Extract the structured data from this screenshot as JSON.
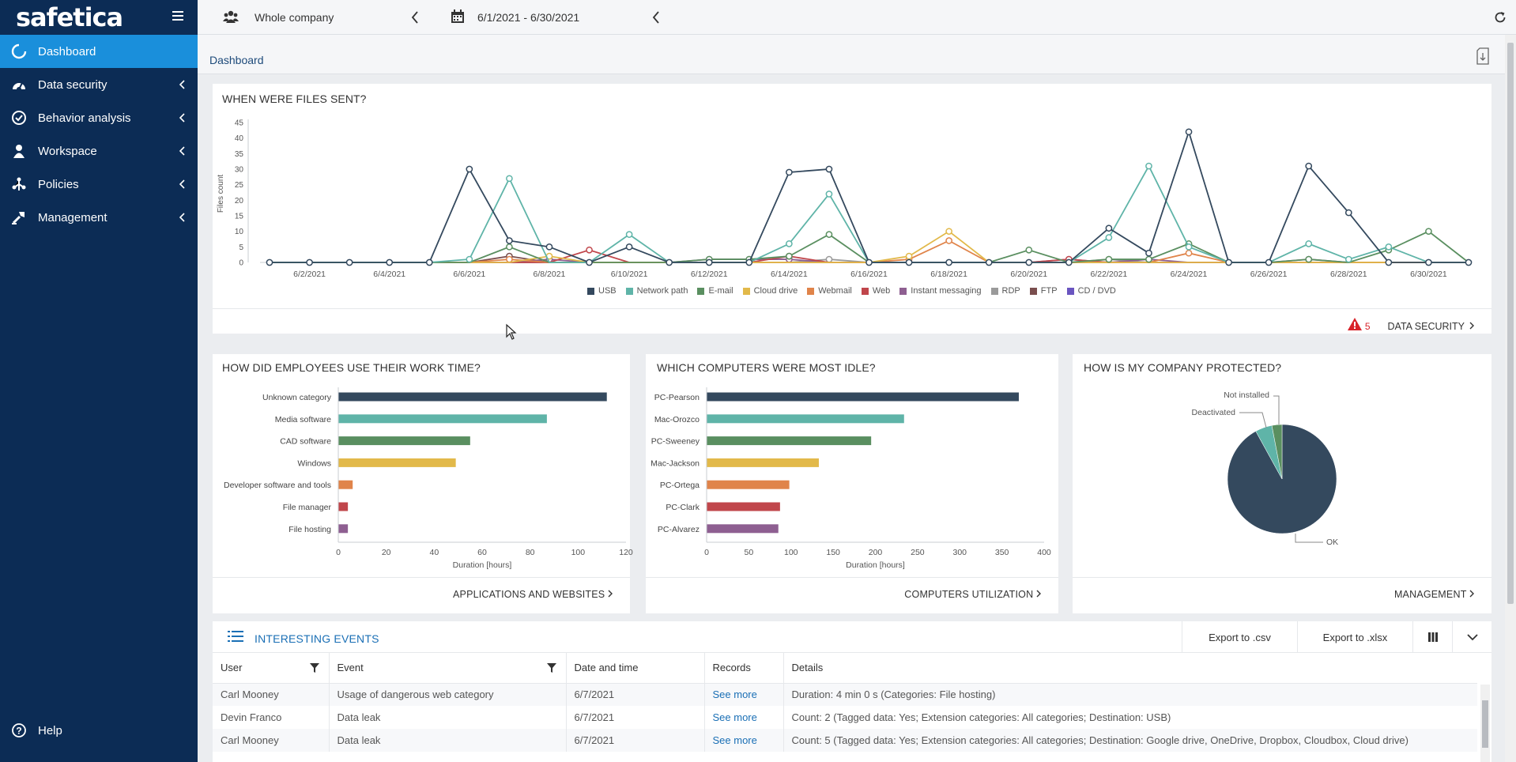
{
  "brand": {
    "logo": "safetica"
  },
  "sidebar": {
    "items": [
      {
        "label": "Dashboard",
        "active": true,
        "icon": "dashboard-icon"
      },
      {
        "label": "Data security",
        "icon": "data-security-icon"
      },
      {
        "label": "Behavior analysis",
        "icon": "behavior-icon"
      },
      {
        "label": "Workspace",
        "icon": "workspace-icon"
      },
      {
        "label": "Policies",
        "icon": "policies-icon"
      },
      {
        "label": "Management",
        "icon": "management-icon"
      }
    ],
    "help": "Help"
  },
  "topbar": {
    "scope": "Whole company",
    "date_range": "6/1/2021 - 6/30/2021"
  },
  "page": {
    "breadcrumb": "Dashboard"
  },
  "colors": {
    "navy": "#0c2c55",
    "accent": "#1a8fdb",
    "usb": "#34495e",
    "network": "#5fb4a8",
    "email": "#5a8f60",
    "cloud": "#e2b94a",
    "webmail": "#e0844a",
    "web": "#c0464b",
    "im": "#8e5f91",
    "rdp": "#9a9a9a",
    "ftp": "#7a4e4e",
    "cd": "#6a55c0"
  },
  "files_sent": {
    "title": "WHEN WERE FILES SENT?",
    "link": "DATA SECURITY",
    "alert_count": "5"
  },
  "work_time": {
    "title": "HOW DID EMPLOYEES USE THEIR WORK TIME?",
    "link": "APPLICATIONS AND WEBSITES"
  },
  "idle": {
    "title": "WHICH COMPUTERS WERE MOST IDLE?",
    "link": "COMPUTERS UTILIZATION"
  },
  "protected": {
    "title": "HOW IS MY COMPANY PROTECTED?",
    "link": "MANAGEMENT"
  },
  "chart_data": [
    {
      "type": "line",
      "ylabel": "Files count",
      "ylim": [
        0,
        45
      ],
      "yticks": [
        0,
        5,
        10,
        15,
        20,
        25,
        30,
        35,
        40,
        45
      ],
      "x": [
        "6/1/2021",
        "6/2/2021",
        "6/3/2021",
        "6/4/2021",
        "6/5/2021",
        "6/6/2021",
        "6/7/2021",
        "6/8/2021",
        "6/9/2021",
        "6/10/2021",
        "6/11/2021",
        "6/12/2021",
        "6/13/2021",
        "6/14/2021",
        "6/15/2021",
        "6/16/2021",
        "6/17/2021",
        "6/18/2021",
        "6/19/2021",
        "6/20/2021",
        "6/21/2021",
        "6/22/2021",
        "6/23/2021",
        "6/24/2021",
        "6/25/2021",
        "6/26/2021",
        "6/27/2021",
        "6/28/2021",
        "6/29/2021",
        "6/30/2021",
        "7/1/2021"
      ],
      "xtick_labels": [
        "6/2/2021",
        "6/4/2021",
        "6/6/2021",
        "6/8/2021",
        "6/10/2021",
        "6/12/2021",
        "6/14/2021",
        "6/16/2021",
        "6/18/2021",
        "6/20/2021",
        "6/22/2021",
        "6/24/2021",
        "6/26/2021",
        "6/28/2021",
        "6/30/2021"
      ],
      "grid": false,
      "legend": "bottom",
      "series": [
        {
          "name": "USB",
          "color": "#34495e",
          "values": [
            0,
            0,
            0,
            0,
            0,
            30,
            7,
            5,
            0,
            5,
            0,
            0,
            0,
            29,
            30,
            0,
            0,
            0,
            0,
            0,
            0,
            11,
            3,
            42,
            0,
            0,
            31,
            16,
            0,
            0,
            0
          ]
        },
        {
          "name": "Network path",
          "color": "#5fb4a8",
          "values": [
            0,
            0,
            0,
            0,
            0,
            1,
            27,
            0,
            0,
            9,
            0,
            0,
            0,
            6,
            22,
            0,
            0,
            0,
            0,
            0,
            0,
            8,
            31,
            5,
            0,
            0,
            6,
            1,
            5,
            0,
            0
          ]
        },
        {
          "name": "E-mail",
          "color": "#5a8f60",
          "values": [
            0,
            0,
            0,
            0,
            0,
            0,
            5,
            0,
            0,
            0,
            0,
            1,
            1,
            2,
            9,
            0,
            0,
            0,
            0,
            4,
            0,
            1,
            1,
            6,
            0,
            0,
            1,
            0,
            4,
            10,
            0
          ]
        },
        {
          "name": "Cloud drive",
          "color": "#e2b94a",
          "values": [
            0,
            0,
            0,
            0,
            0,
            0,
            0,
            2,
            0,
            0,
            0,
            0,
            0,
            0,
            0,
            0,
            2,
            10,
            0,
            0,
            0,
            0,
            0,
            0,
            0,
            0,
            0,
            0,
            0,
            0,
            0
          ]
        },
        {
          "name": "Webmail",
          "color": "#e0844a",
          "values": [
            0,
            0,
            0,
            0,
            0,
            0,
            1,
            0,
            0,
            0,
            0,
            0,
            0,
            0,
            0,
            0,
            1,
            7,
            0,
            0,
            0,
            0,
            0,
            3,
            0,
            0,
            0,
            0,
            0,
            0,
            0
          ]
        },
        {
          "name": "Web",
          "color": "#c0464b",
          "values": [
            0,
            0,
            0,
            0,
            0,
            0,
            0,
            0,
            4,
            0,
            0,
            0,
            0,
            2,
            0,
            0,
            0,
            0,
            0,
            0,
            1,
            0,
            0,
            0,
            0,
            0,
            0,
            0,
            0,
            0,
            0
          ]
        },
        {
          "name": "Instant messaging",
          "color": "#8e5f91",
          "values": [
            0,
            0,
            0,
            0,
            0,
            0,
            0,
            1,
            0,
            0,
            0,
            1,
            1,
            1,
            0,
            0,
            0,
            0,
            0,
            0,
            1,
            0,
            1,
            0,
            0,
            0,
            1,
            0,
            0,
            0,
            0
          ]
        },
        {
          "name": "RDP",
          "color": "#9a9a9a",
          "values": [
            0,
            0,
            0,
            0,
            0,
            0,
            0,
            0,
            0,
            0,
            0,
            0,
            0,
            0,
            1,
            0,
            0,
            0,
            0,
            0,
            0,
            1,
            0,
            0,
            0,
            0,
            0,
            0,
            0,
            0,
            0
          ]
        },
        {
          "name": "FTP",
          "color": "#7a4e4e",
          "values": [
            0,
            0,
            0,
            0,
            0,
            0,
            2,
            0,
            0,
            0,
            0,
            0,
            0,
            0,
            0,
            0,
            0,
            0,
            0,
            0,
            0,
            0,
            0,
            0,
            0,
            0,
            0,
            0,
            0,
            0,
            0
          ]
        },
        {
          "name": "CD / DVD",
          "color": "#6a55c0",
          "values": [
            0,
            0,
            0,
            0,
            0,
            0,
            0,
            0,
            0,
            0,
            0,
            0,
            0,
            0,
            0,
            0,
            0,
            0,
            0,
            0,
            0,
            0,
            0,
            0,
            0,
            0,
            0,
            0,
            0,
            0,
            0
          ]
        }
      ]
    },
    {
      "type": "bar",
      "orientation": "horizontal",
      "categories": [
        "Unknown category",
        "Media software",
        "CAD software",
        "Windows",
        "Developer software and tools",
        "File manager",
        "File hosting"
      ],
      "values": [
        112,
        87,
        55,
        49,
        6,
        4,
        4
      ],
      "colors": [
        "#34495e",
        "#5fb4a8",
        "#5a8f60",
        "#e2b94a",
        "#e0844a",
        "#c0464b",
        "#8e5f91"
      ],
      "xlabel": "Duration [hours]",
      "xlim": [
        0,
        120
      ],
      "xticks": [
        0,
        20,
        40,
        60,
        80,
        100,
        120
      ]
    },
    {
      "type": "bar",
      "orientation": "horizontal",
      "categories": [
        "PC-Pearson",
        "Mac-Orozco",
        "PC-Sweeney",
        "Mac-Jackson",
        "PC-Ortega",
        "PC-Clark",
        "PC-Alvarez"
      ],
      "values": [
        370,
        234,
        195,
        133,
        98,
        87,
        85
      ],
      "colors": [
        "#34495e",
        "#5fb4a8",
        "#5a8f60",
        "#e2b94a",
        "#e0844a",
        "#c0464b",
        "#8e5f91"
      ],
      "xlabel": "Duration [hours]",
      "xlim": [
        0,
        400
      ],
      "xticks": [
        0,
        50,
        100,
        150,
        200,
        250,
        300,
        350,
        400
      ]
    },
    {
      "type": "pie",
      "slices": [
        {
          "label": "OK",
          "value": 92,
          "color": "#34495e"
        },
        {
          "label": "Deactivated",
          "value": 5,
          "color": "#5fb4a8"
        },
        {
          "label": "Not installed",
          "value": 3,
          "color": "#5a8f60"
        }
      ]
    }
  ],
  "events": {
    "title": "INTERESTING EVENTS",
    "export_csv": "Export to .csv",
    "export_xlsx": "Export to .xlsx",
    "columns": [
      "User",
      "Event",
      "Date and time",
      "Records",
      "Details"
    ],
    "rows": [
      {
        "user": "Carl Mooney",
        "event": "Usage of dangerous web category",
        "date": "6/7/2021",
        "records": "See more",
        "details": "Duration: 4 min 0 s (Categories: File hosting)"
      },
      {
        "user": "Devin Franco",
        "event": "Data leak",
        "date": "6/7/2021",
        "records": "See more",
        "details": "Count: 2 (Tagged data: Yes; Extension categories: All categories; Destination: USB)"
      },
      {
        "user": "Carl Mooney",
        "event": "Data leak",
        "date": "6/7/2021",
        "records": "See more",
        "details": "Count: 5 (Tagged data: Yes; Extension categories: All categories; Destination: Google drive, OneDrive, Dropbox, Cloudbox, Cloud drive)"
      }
    ]
  }
}
